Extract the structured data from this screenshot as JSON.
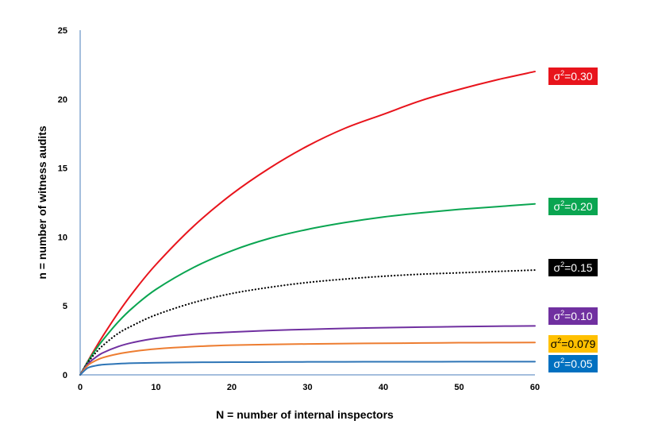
{
  "chart_data": {
    "type": "line",
    "xlabel": "N = number of internal inspectors",
    "ylabel": "n = number of witness audits",
    "xlim": [
      0,
      60
    ],
    "ylim": [
      0,
      25
    ],
    "xticks": [
      0,
      10,
      20,
      30,
      40,
      50,
      60
    ],
    "yticks": [
      0,
      5,
      10,
      15,
      20,
      25
    ],
    "grid": false,
    "legend_placement": "right, labels at line ends",
    "x": [
      0,
      1,
      2,
      3,
      5,
      7,
      10,
      15,
      20,
      25,
      30,
      35,
      40,
      45,
      50,
      55,
      60
    ],
    "series": [
      {
        "name": "σ2=0.30",
        "label_base": "σ",
        "label_sup": "2",
        "label_rest": "=0.30",
        "color": "#e8141c",
        "style": "solid",
        "values": [
          0,
          0.98,
          1.92,
          2.82,
          4.49,
          6.0,
          8.0,
          10.8,
          13.1,
          15.0,
          16.6,
          17.9,
          18.9,
          19.9,
          20.7,
          21.4,
          22.0
        ]
      },
      {
        "name": "σ2=0.20",
        "label_base": "σ",
        "label_sup": "2",
        "label_rest": "=0.20",
        "color": "#0aa551",
        "style": "solid",
        "values": [
          0,
          0.94,
          1.78,
          2.53,
          3.83,
          4.9,
          6.2,
          7.8,
          9.0,
          9.9,
          10.55,
          11.05,
          11.45,
          11.75,
          12.0,
          12.2,
          12.4
        ]
      },
      {
        "name": "σ2=0.15",
        "label_base": "σ",
        "label_sup": "2",
        "label_rest": "=0.15",
        "color": "#000000",
        "style": "dotted",
        "values": [
          0,
          0.88,
          1.57,
          2.13,
          3.0,
          3.6,
          4.35,
          5.25,
          5.9,
          6.35,
          6.7,
          6.95,
          7.15,
          7.3,
          7.4,
          7.5,
          7.6
        ]
      },
      {
        "name": "σ2=0.10",
        "label_base": "σ",
        "label_sup": "2",
        "label_rest": "=0.10",
        "color": "#7030a0",
        "style": "solid",
        "values": [
          0,
          0.78,
          1.25,
          1.6,
          2.05,
          2.35,
          2.65,
          2.95,
          3.1,
          3.22,
          3.3,
          3.37,
          3.42,
          3.46,
          3.5,
          3.53,
          3.55
        ]
      },
      {
        "name": "σ2=0.079",
        "label_base": "σ",
        "label_sup": "2",
        "label_rest": "=0.079",
        "color": "#ed7d31",
        "style": "solid",
        "values": [
          0,
          0.68,
          1.02,
          1.25,
          1.52,
          1.7,
          1.88,
          2.05,
          2.15,
          2.2,
          2.24,
          2.27,
          2.29,
          2.31,
          2.33,
          2.34,
          2.35
        ]
      },
      {
        "name": "σ2=0.05",
        "label_base": "σ",
        "label_sup": "2",
        "label_rest": "=0.05",
        "color": "#2e75b6",
        "style": "solid",
        "values": [
          0,
          0.5,
          0.66,
          0.74,
          0.81,
          0.85,
          0.88,
          0.91,
          0.92,
          0.93,
          0.94,
          0.945,
          0.95,
          0.95,
          0.955,
          0.955,
          0.96
        ]
      }
    ]
  },
  "legend_boxes": [
    {
      "series": 0,
      "bg": "#e8141c",
      "text_color": "#ffffff"
    },
    {
      "series": 1,
      "bg": "#0aa551",
      "text_color": "#ffffff"
    },
    {
      "series": 2,
      "bg": "#000000",
      "text_color": "#ffffff"
    },
    {
      "series": 3,
      "bg": "#7030a0",
      "text_color": "#ffffff"
    },
    {
      "series": 4,
      "bg": "#ffc000",
      "text_color": "#000000"
    },
    {
      "series": 5,
      "bg": "#0070c0",
      "text_color": "#ffffff"
    }
  ]
}
